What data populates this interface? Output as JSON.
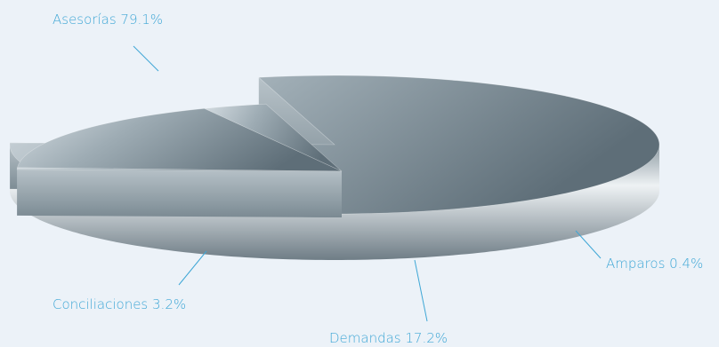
{
  "chart_data": {
    "type": "pie",
    "three_d": true,
    "categories": [
      "Asesorías",
      "Amparos",
      "Demandas",
      "Conciliaciones"
    ],
    "values": [
      79.1,
      0.4,
      17.2,
      3.2
    ],
    "data_labels": [
      "Asesorías 79.1%",
      "Amparos 0.4%",
      "Demandas 17.2%",
      "Conciliaciones 3.2%"
    ],
    "legend": "none",
    "colors": {
      "background": "#ecf2f8",
      "label_text": "#3fa7d6",
      "leader_line": "#3fa7d6",
      "slice_top": "#7f9099",
      "slice_side": "#9aa6ae"
    }
  }
}
